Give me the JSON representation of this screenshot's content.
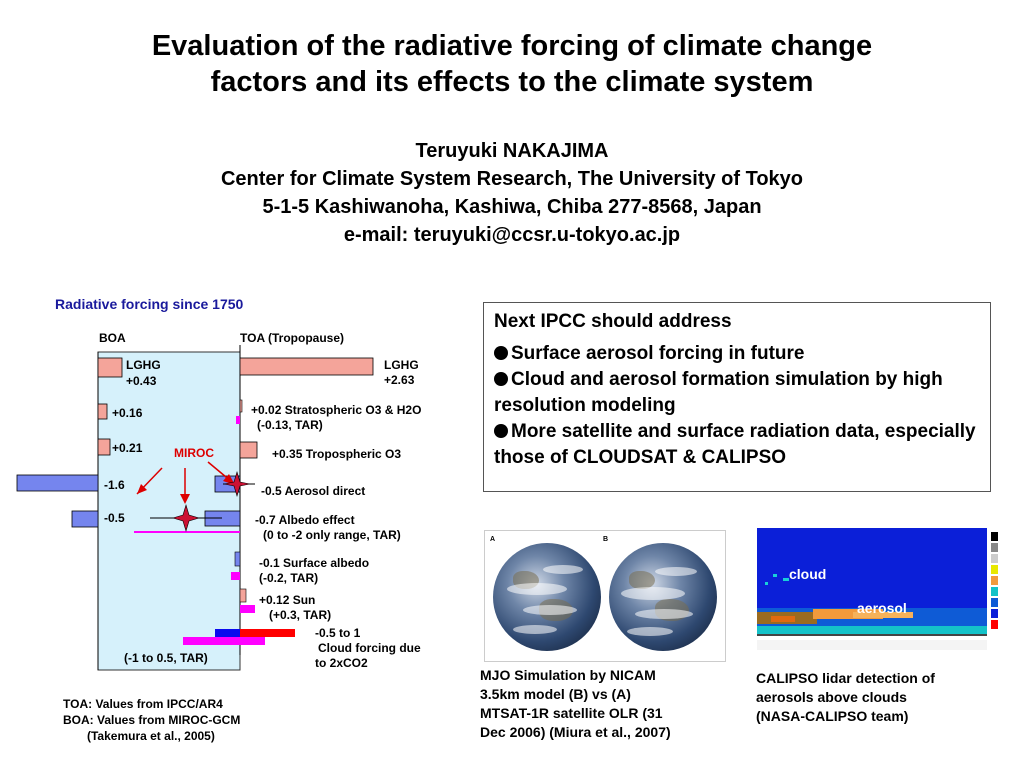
{
  "header": {
    "title_line1": "Evaluation of the radiative forcing of climate change",
    "title_line2": "factors and its effects to the climate system",
    "author_name": "Teruyuki NAKAJIMA",
    "affiliation": "Center for Climate System Research, The University of Tokyo",
    "address": "5-1-5 Kashiwanoha, Kashiwa, Chiba 277-8568, Japan",
    "email": "e-mail: teruyuki@ccsr.u-tokyo.ac.jp"
  },
  "chart_data": {
    "type": "bar",
    "title": "Radiative forcing since 1750",
    "column_labels": {
      "boa": "BOA",
      "toa": "TOA (Tropopause)"
    },
    "model_label": "MIROC",
    "boa_range_label": "(-1 to 0.5, TAR)",
    "boa": [
      {
        "name": "LGHG",
        "value": 0.43,
        "label": "LGHG\n+0.43"
      },
      {
        "name": "Stratospheric O3",
        "value": 0.16,
        "label": "+0.16"
      },
      {
        "name": "Tropospheric O3",
        "value": 0.21,
        "label": "+0.21"
      },
      {
        "name": "Aerosol direct",
        "value": -1.6,
        "label": "-1.6"
      },
      {
        "name": "Albedo effect",
        "value": -0.5,
        "label": "-0.5"
      }
    ],
    "toa": [
      {
        "name": "LGHG",
        "value": 2.63,
        "label_line1": "LGHG",
        "label_line2": "+2.63"
      },
      {
        "name": "Stratospheric O3 & H2O",
        "value": 0.02,
        "tar": -0.13,
        "label_line1": "+0.02 Stratospheric O3 & H2O",
        "label_line2": "(-0.13, TAR)"
      },
      {
        "name": "Tropospheric O3",
        "value": 0.35,
        "label_line1": "+0.35 Tropospheric O3"
      },
      {
        "name": "Aerosol direct",
        "value": -0.5,
        "label_line1": "-0.5 Aerosol direct"
      },
      {
        "name": "Albedo effect",
        "value": -0.7,
        "tar_range": [
          -2,
          0
        ],
        "label_line1": "-0.7 Albedo effect",
        "label_line2": "(0 to -2 only range, TAR)"
      },
      {
        "name": "Surface albedo",
        "value": -0.1,
        "tar": -0.2,
        "label_line1": "-0.1 Surface albedo",
        "label_line2": "(-0.2, TAR)"
      },
      {
        "name": "Sun",
        "value": 0.12,
        "tar": 0.3,
        "label_line1": "+0.12 Sun",
        "label_line2": "(+0.3, TAR)"
      },
      {
        "name": "Cloud forcing due to 2xCO2",
        "range": [
          -0.5,
          1
        ],
        "label_line1": "-0.5 to 1",
        "label_line2": "Cloud forcing due",
        "label_line3": "to 2xCO2"
      }
    ],
    "colors": {
      "positive": "#f4a49a",
      "negative": "#7585ee",
      "tar": "#ff00ff",
      "panel": "#d6f1fb",
      "cloud_blue": "#0a0aee",
      "cloud_red": "#ff0000",
      "miroc": "#dd0000"
    }
  },
  "notes": {
    "line1": "TOA: Values from IPCC/AR4",
    "line2": "BOA: Values from MIROC-GCM",
    "line3": "(Takemura et al., 2005)"
  },
  "ipcc_box": {
    "heading": "Next IPCC should address",
    "items": [
      "Surface aerosol forcing in future",
      "Cloud and aerosol formation simulation by high resolution modeling",
      "More satellite and surface radiation data, especially those of CLOUDSAT & CALIPSO"
    ]
  },
  "figure_mjo": {
    "panel_a": "A",
    "panel_b": "B",
    "caption_line1": "MJO Simulation by NICAM",
    "caption_line2": "3.5km model (B) vs (A)",
    "caption_line3": "MTSAT-1R satellite OLR (31",
    "caption_line4": "Dec 2006) (Miura et al., 2007)"
  },
  "figure_calipso": {
    "cloud_label": "cloud",
    "aerosol_label": "aerosol",
    "caption_line1": "CALIPSO lidar detection of",
    "caption_line2": "aerosols above clouds",
    "caption_line3": "(NASA-CALIPSO team)"
  }
}
